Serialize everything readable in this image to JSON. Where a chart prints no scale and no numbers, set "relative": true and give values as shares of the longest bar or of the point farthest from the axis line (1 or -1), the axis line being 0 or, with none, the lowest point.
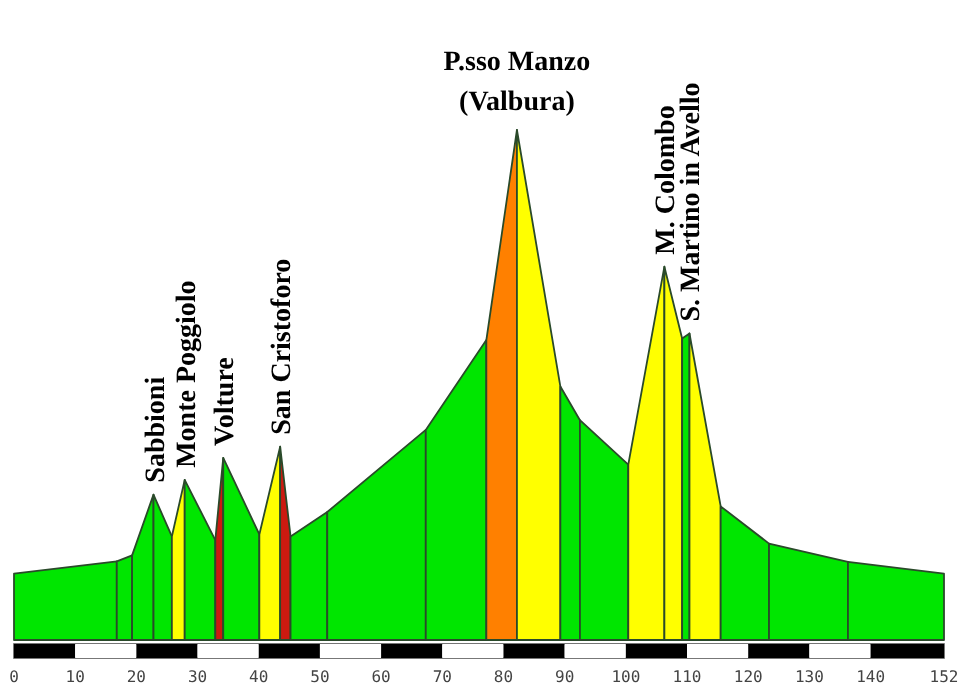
{
  "chart_data": {
    "type": "area",
    "relative": true,
    "xlim": [
      0,
      152
    ],
    "xticks": [
      0,
      10,
      20,
      30,
      40,
      50,
      60,
      70,
      80,
      90,
      100,
      110,
      120,
      130,
      140,
      152
    ],
    "series": [
      {
        "color": "#00e600",
        "x": [
          0,
          16.8
        ],
        "values": [
          0.13,
          0.154
        ]
      },
      {
        "color": "#00e600",
        "x": [
          16.8,
          19.3
        ],
        "values": [
          0.154,
          0.166
        ]
      },
      {
        "color": "#00e600",
        "x": [
          19.3,
          22.8
        ],
        "values": [
          0.166,
          0.285
        ]
      },
      {
        "color": "#00e600",
        "x": [
          22.8,
          25.8
        ],
        "values": [
          0.285,
          0.203
        ]
      },
      {
        "color": "#ffff00",
        "x": [
          25.8,
          27.9
        ],
        "values": [
          0.203,
          0.314
        ]
      },
      {
        "color": "#00e600",
        "x": [
          27.9,
          32.9
        ],
        "values": [
          0.314,
          0.196
        ]
      },
      {
        "color": "#cc1a10",
        "x": [
          32.9,
          34.2
        ],
        "values": [
          0.196,
          0.357
        ]
      },
      {
        "color": "#00e600",
        "x": [
          34.2,
          40.1
        ],
        "values": [
          0.357,
          0.207
        ]
      },
      {
        "color": "#ffff00",
        "x": [
          40.1,
          43.5
        ],
        "values": [
          0.207,
          0.379
        ]
      },
      {
        "color": "#cc1a10",
        "x": [
          43.5,
          45.2
        ],
        "values": [
          0.379,
          0.203
        ]
      },
      {
        "color": "#00e600",
        "x": [
          45.2,
          51.2
        ],
        "values": [
          0.203,
          0.251
        ]
      },
      {
        "color": "#00e600",
        "x": [
          51.2,
          67.3
        ],
        "values": [
          0.251,
          0.412
        ]
      },
      {
        "color": "#00e600",
        "x": [
          67.3,
          77.2
        ],
        "values": [
          0.412,
          0.588
        ]
      },
      {
        "color": "#ff8000",
        "x": [
          77.2,
          82.2
        ],
        "values": [
          0.588,
          1
        ]
      },
      {
        "color": "#ffff00",
        "x": [
          82.2,
          89.3
        ],
        "values": [
          1,
          0.497
        ]
      },
      {
        "color": "#00e600",
        "x": [
          89.3,
          92.5
        ],
        "values": [
          0.497,
          0.431
        ]
      },
      {
        "color": "#00e600",
        "x": [
          92.5,
          100.4
        ],
        "values": [
          0.431,
          0.344
        ]
      },
      {
        "color": "#ffff00",
        "x": [
          100.4,
          106.3
        ],
        "values": [
          0.344,
          0.732
        ]
      },
      {
        "color": "#ffff00",
        "x": [
          106.3,
          109.2
        ],
        "values": [
          0.732,
          0.591
        ]
      },
      {
        "color": "#00e600",
        "x": [
          109.2,
          110.4
        ],
        "values": [
          0.591,
          0.601
        ]
      },
      {
        "color": "#ffff00",
        "x": [
          110.4,
          115.5
        ],
        "values": [
          0.601,
          0.262
        ]
      },
      {
        "color": "#00e600",
        "x": [
          115.5,
          123.4
        ],
        "values": [
          0.262,
          0.189
        ]
      },
      {
        "color": "#00e600",
        "x": [
          123.4,
          136.3
        ],
        "values": [
          0.189,
          0.153
        ]
      },
      {
        "color": "#00e600",
        "x": [
          136.3,
          152
        ],
        "values": [
          0.153,
          0.13
        ]
      }
    ],
    "annotations": [
      {
        "text": "Sabbioni",
        "x": 22.8,
        "y": 0.285
      },
      {
        "text": "Monte Poggiolo",
        "x": 27.9,
        "y": 0.314
      },
      {
        "text": "Volture",
        "x": 34.2,
        "y": 0.357
      },
      {
        "text": "San Cristoforo",
        "x": 43.5,
        "y": 0.379
      },
      {
        "text": "P.sso Manzo\n(Valbura)",
        "x": 82.2,
        "y": 1
      },
      {
        "text": "M. Colombo",
        "x": 106.3,
        "y": 0.732
      },
      {
        "text": "S. Martino in Avello",
        "x": 110.4,
        "y": 0.601
      }
    ]
  }
}
